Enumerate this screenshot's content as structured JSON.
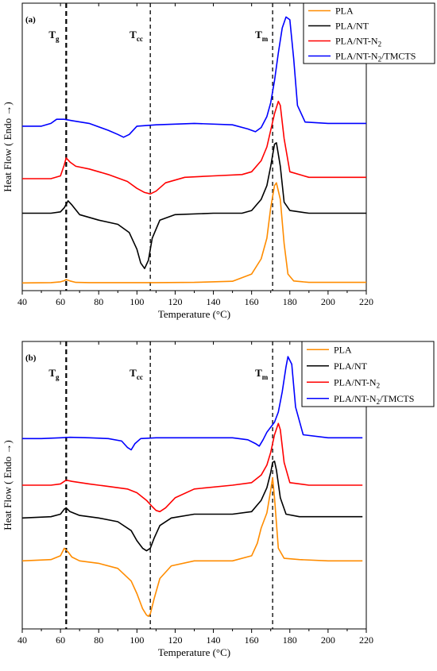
{
  "colors": {
    "PLA": "#ff8c00",
    "PLA/NT": "#000000",
    "PLA/NT-N2": "#ff0000",
    "PLA/NT-N2/TMCTS": "#0000ff"
  },
  "chart_data": [
    {
      "type": "line",
      "panel_label": "(a)",
      "xlabel": "Temperature (°C)",
      "ylabel": "Heat Flow ( Endo →)",
      "xlim": [
        40,
        220
      ],
      "x_ticks": [
        40,
        60,
        80,
        100,
        120,
        140,
        160,
        180,
        200,
        220
      ],
      "grid": false,
      "legend_position": "top-right",
      "annotations": [
        {
          "main": "T",
          "sub": "g",
          "x": 63,
          "style": "thick-dashed"
        },
        {
          "main": "T",
          "sub": "cc",
          "x": 107,
          "style": "dashed"
        },
        {
          "main": "T",
          "sub": "m",
          "x": 171,
          "style": "dashed"
        }
      ],
      "series": [
        {
          "name": "PLA",
          "legend_main": "PLA",
          "legend_sub": "",
          "legend_tail": "",
          "key": "PLA",
          "x": [
            40,
            55,
            60,
            62,
            63,
            65,
            68,
            75,
            90,
            110,
            130,
            150,
            160,
            165,
            168,
            170,
            172,
            173,
            175,
            177,
            179,
            182,
            190,
            205,
            220
          ],
          "y": [
            0.08,
            0.09,
            0.12,
            0.16,
            0.2,
            0.15,
            0.1,
            0.09,
            0.09,
            0.09,
            0.1,
            0.14,
            0.4,
            0.95,
            1.7,
            2.8,
            3.6,
            3.7,
            3.1,
            1.5,
            0.4,
            0.15,
            0.1,
            0.1,
            0.1
          ]
        },
        {
          "name": "PLA/NT",
          "legend_main": "PLA/NT",
          "legend_sub": "",
          "legend_tail": "",
          "key": "PLA/NT",
          "x": [
            40,
            55,
            60,
            62,
            64,
            66,
            70,
            80,
            90,
            96,
            100,
            102,
            104,
            106,
            108,
            112,
            120,
            140,
            155,
            160,
            165,
            168,
            170,
            172,
            173,
            175,
            177,
            180,
            190,
            205,
            220
          ],
          "y": [
            2.6,
            2.6,
            2.65,
            2.8,
            3.05,
            2.9,
            2.55,
            2.35,
            2.2,
            1.9,
            1.3,
            0.8,
            0.6,
            0.9,
            1.7,
            2.35,
            2.55,
            2.6,
            2.6,
            2.7,
            3.1,
            3.6,
            4.3,
            5.1,
            5.15,
            4.3,
            3.0,
            2.7,
            2.6,
            2.6,
            2.6
          ]
        },
        {
          "name": "PLA/NT-N2",
          "legend_main": "PLA/NT-N",
          "legend_sub": "2",
          "legend_tail": "",
          "key": "PLA/NT-N2",
          "x": [
            40,
            55,
            60,
            62,
            63,
            65,
            68,
            75,
            85,
            95,
            100,
            104,
            107,
            110,
            115,
            125,
            140,
            155,
            160,
            165,
            168,
            170,
            172,
            174,
            175,
            177,
            180,
            190,
            205,
            220
          ],
          "y": [
            3.85,
            3.85,
            3.95,
            4.35,
            4.6,
            4.45,
            4.3,
            4.2,
            4.0,
            3.75,
            3.5,
            3.35,
            3.3,
            3.4,
            3.7,
            3.9,
            3.95,
            4.0,
            4.1,
            4.5,
            5.0,
            5.6,
            6.2,
            6.65,
            6.5,
            5.3,
            4.1,
            3.9,
            3.9,
            3.9
          ]
        },
        {
          "name": "PLA/NT-N2/TMCTS",
          "legend_main": "PLA/NT-N",
          "legend_sub": "2",
          "legend_tail": "/TMCTS",
          "key": "PLA/NT-N2/TMCTS",
          "x": [
            40,
            50,
            55,
            58,
            62,
            66,
            75,
            85,
            90,
            93,
            96,
            100,
            110,
            130,
            150,
            158,
            162,
            165,
            168,
            170,
            172,
            174,
            176,
            178,
            180,
            182,
            184,
            188,
            200,
            210,
            220
          ],
          "y": [
            5.75,
            5.75,
            5.85,
            6.0,
            6.0,
            5.95,
            5.85,
            5.6,
            5.45,
            5.35,
            5.45,
            5.75,
            5.8,
            5.85,
            5.8,
            5.65,
            5.55,
            5.7,
            6.1,
            6.6,
            7.4,
            8.4,
            9.3,
            9.7,
            9.6,
            8.2,
            6.5,
            5.9,
            5.85,
            5.85,
            5.85
          ]
        }
      ]
    },
    {
      "type": "line",
      "panel_label": "(b)",
      "xlabel": "Temperature (°C)",
      "ylabel": "Heat Flow ( Endo →)",
      "xlim": [
        40,
        220
      ],
      "x_ticks": [
        40,
        60,
        80,
        100,
        120,
        140,
        160,
        180,
        200,
        220
      ],
      "grid": false,
      "legend_position": "top-right",
      "annotations": [
        {
          "main": "T",
          "sub": "g",
          "x": 63,
          "style": "thick-dashed"
        },
        {
          "main": "T",
          "sub": "cc",
          "x": 107,
          "style": "dashed"
        },
        {
          "main": "T",
          "sub": "m",
          "x": 171,
          "style": "dashed"
        }
      ],
      "series": [
        {
          "name": "PLA",
          "legend_main": "PLA",
          "legend_sub": "",
          "legend_tail": "",
          "key": "PLA",
          "x": [
            40,
            55,
            60,
            62,
            64,
            66,
            70,
            80,
            90,
            97,
            100,
            103,
            105,
            106,
            107,
            109,
            112,
            118,
            130,
            150,
            160,
            163,
            165,
            168,
            170,
            171,
            172,
            174,
            177,
            185,
            200,
            218
          ],
          "y": [
            2.1,
            2.15,
            2.3,
            2.6,
            2.45,
            2.25,
            2.1,
            2.0,
            1.8,
            1.3,
            0.8,
            0.2,
            -0.05,
            -0.1,
            0.0,
            0.6,
            1.4,
            1.9,
            2.1,
            2.1,
            2.3,
            2.8,
            3.4,
            4.0,
            4.9,
            5.4,
            4.6,
            2.6,
            2.2,
            2.15,
            2.1,
            2.1
          ]
        },
        {
          "name": "PLA/NT",
          "legend_main": "PLA/NT",
          "legend_sub": "",
          "legend_tail": "",
          "key": "PLA/NT",
          "x": [
            40,
            55,
            60,
            62,
            63,
            65,
            70,
            80,
            90,
            97,
            100,
            103,
            105,
            107,
            109,
            112,
            118,
            130,
            150,
            160,
            165,
            168,
            170,
            171,
            172,
            173,
            175,
            178,
            185,
            200,
            218
          ],
          "y": [
            3.8,
            3.85,
            3.95,
            4.15,
            4.2,
            4.05,
            3.9,
            3.8,
            3.65,
            3.3,
            2.9,
            2.6,
            2.5,
            2.6,
            3.0,
            3.5,
            3.8,
            3.95,
            3.95,
            4.05,
            4.5,
            5.0,
            5.6,
            6.0,
            6.05,
            5.7,
            4.6,
            3.95,
            3.85,
            3.85,
            3.85
          ]
        },
        {
          "name": "PLA/NT-N2",
          "legend_main": "PLA/NT-N",
          "legend_sub": "2",
          "legend_tail": "",
          "key": "PLA/NT-N2",
          "x": [
            40,
            55,
            60,
            63,
            66,
            75,
            85,
            95,
            100,
            105,
            108,
            110,
            112,
            115,
            120,
            130,
            150,
            160,
            165,
            168,
            170,
            172,
            174,
            175,
            177,
            180,
            190,
            205,
            218
          ],
          "y": [
            5.1,
            5.1,
            5.15,
            5.3,
            5.25,
            5.15,
            5.05,
            4.95,
            4.8,
            4.5,
            4.25,
            4.1,
            4.05,
            4.2,
            4.6,
            4.95,
            5.1,
            5.2,
            5.5,
            5.9,
            6.4,
            7.1,
            7.55,
            7.3,
            6.0,
            5.2,
            5.1,
            5.1,
            5.1
          ]
        },
        {
          "name": "PLA/NT-N2/TMCTS",
          "legend_main": "PLA/NT-N",
          "legend_sub": "2",
          "legend_tail": "/TMCTS",
          "key": "PLA/NT-N2/TMCTS",
          "x": [
            40,
            50,
            60,
            65,
            75,
            85,
            92,
            95,
            97,
            99,
            102,
            110,
            130,
            150,
            158,
            162,
            164,
            166,
            168,
            170,
            172,
            174,
            176,
            178,
            179,
            181,
            183,
            187,
            200,
            210,
            218
          ],
          "y": [
            6.95,
            6.95,
            6.98,
            7.0,
            6.98,
            6.95,
            6.85,
            6.6,
            6.5,
            6.75,
            6.95,
            6.98,
            6.98,
            6.98,
            6.9,
            6.75,
            6.65,
            6.9,
            7.2,
            7.4,
            7.6,
            8.0,
            8.8,
            9.8,
            10.2,
            9.9,
            8.2,
            7.1,
            6.98,
            6.98,
            6.98
          ]
        }
      ]
    }
  ]
}
